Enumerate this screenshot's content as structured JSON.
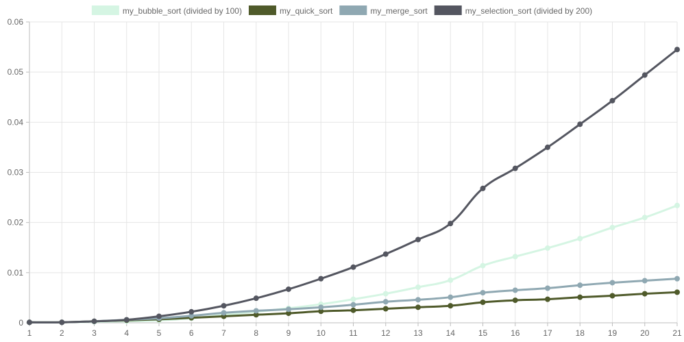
{
  "chart_data": {
    "type": "line",
    "x": [
      "1",
      "2",
      "3",
      "4",
      "5",
      "6",
      "7",
      "8",
      "9",
      "10",
      "11",
      "12",
      "13",
      "14",
      "15",
      "16",
      "17",
      "18",
      "19",
      "20",
      "21"
    ],
    "ylim": [
      0,
      0.06
    ],
    "yticks": [
      "0",
      "0.01",
      "0.02",
      "0.03",
      "0.04",
      "0.05",
      "0.06"
    ],
    "grid": true,
    "legend_position": "top",
    "series": [
      {
        "name": "my_bubble_sort (divided by 100)",
        "color": "#d5f5e3",
        "values": [
          0.0001,
          0.0001,
          0.0002,
          0.0003,
          0.0005,
          0.0009,
          0.0016,
          0.0022,
          0.0029,
          0.0037,
          0.0047,
          0.0058,
          0.0071,
          0.0085,
          0.0114,
          0.0132,
          0.0149,
          0.0168,
          0.019,
          0.021,
          0.0234
        ]
      },
      {
        "name": "my_quick_sort",
        "color": "#4f5a2a",
        "values": [
          0.0001,
          0.0001,
          0.0003,
          0.0005,
          0.0007,
          0.001,
          0.0013,
          0.0016,
          0.0019,
          0.0023,
          0.0025,
          0.0028,
          0.0031,
          0.0034,
          0.0041,
          0.0045,
          0.0047,
          0.0051,
          0.0054,
          0.0058,
          0.0061
        ]
      },
      {
        "name": "my_merge_sort",
        "color": "#8fa8b2",
        "values": [
          0.0001,
          0.0001,
          0.0003,
          0.0006,
          0.0009,
          0.0014,
          0.002,
          0.0024,
          0.0027,
          0.0031,
          0.0036,
          0.0042,
          0.0046,
          0.0051,
          0.006,
          0.0065,
          0.0069,
          0.0075,
          0.008,
          0.0084,
          0.0088
        ]
      },
      {
        "name": "my_selection_sort (divided by 200)",
        "color": "#545660",
        "values": [
          0.0001,
          0.0001,
          0.0003,
          0.0006,
          0.0013,
          0.0022,
          0.0034,
          0.0049,
          0.0067,
          0.0088,
          0.0111,
          0.0137,
          0.0166,
          0.0198,
          0.0268,
          0.0308,
          0.035,
          0.0396,
          0.0443,
          0.0494,
          0.0545
        ]
      }
    ]
  }
}
